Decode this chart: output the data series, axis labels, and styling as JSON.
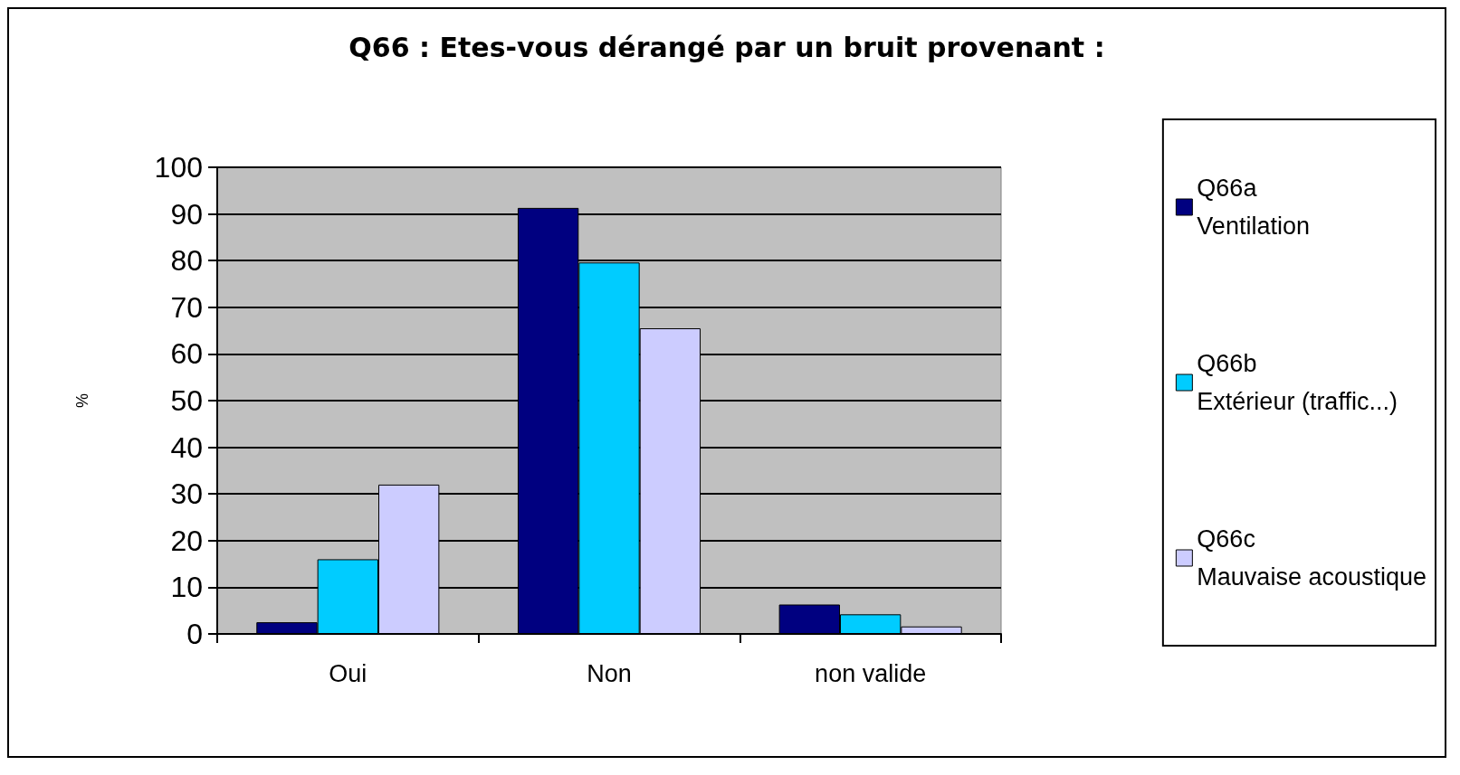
{
  "chart_data": {
    "type": "bar",
    "title": "Q66 : Etes-vous dérangé par un bruit provenant :",
    "ylabel": "%",
    "categories": [
      "Oui",
      "Non",
      "non valide"
    ],
    "series": [
      {
        "name": "Q66a Ventilation",
        "color": "#000080",
        "values": [
          2.5,
          91.3,
          6.3
        ]
      },
      {
        "name": "Q66b Extérieur (traffic...)",
        "color": "#00ccff",
        "values": [
          16,
          79.6,
          4.2
        ]
      },
      {
        "name": "Q66c Mauvaise acoustique",
        "color": "#ccccff",
        "values": [
          32,
          65.5,
          1.6
        ]
      }
    ],
    "ylim": [
      0,
      100
    ],
    "yticks": [
      0,
      10,
      20,
      30,
      40,
      50,
      60,
      70,
      80,
      90,
      100
    ],
    "grid": "y",
    "legend": "right"
  }
}
